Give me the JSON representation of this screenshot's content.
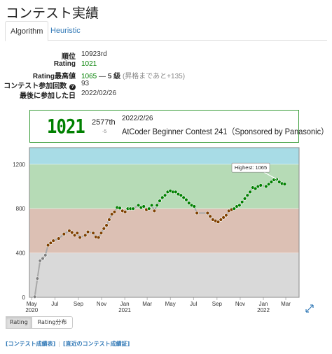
{
  "page": {
    "title": "コンテスト実績"
  },
  "tabs": [
    {
      "label": "Algorithm",
      "active": true
    },
    {
      "label": "Heuristic",
      "active": false
    }
  ],
  "stats": {
    "rank_label": "順位",
    "rank_value": "10923rd",
    "rating_label": "Rating",
    "rating_value": "1021",
    "highest_label": "Rating最高値",
    "highest_value": "1065",
    "highest_sep": "—",
    "highest_kyu": "5 級",
    "highest_note": "(昇格まであと+135)",
    "count_label": "コンテスト参加回数",
    "count_help_icon": "?",
    "count_value": "93",
    "last_label": "最後に参加した日",
    "last_value": "2022/02/26"
  },
  "status_card": {
    "rating": "1021",
    "rank": "2577th",
    "diff": "-5",
    "date": "2022/2/26",
    "contest": "AtCoder Beginner Contest 241（Sponsored by Panasonic）"
  },
  "colors": {
    "cyan_band": "#a8dce6",
    "green_band": "#b6dbb6",
    "brown_band": "#dcc0b4",
    "gray_band": "#d9d9d9",
    "green_point": "#008000",
    "brown_point": "#804000",
    "gray_point": "#808080",
    "line": "#a8a8a8",
    "accent": "#337ab7"
  },
  "chart_data": {
    "type": "line",
    "title": "",
    "xlabel": "",
    "ylabel": "",
    "x_tick_labels": [
      "May\n2020",
      "Jul",
      "Sep",
      "Nov",
      "Jan\n2021",
      "Mar",
      "May",
      "Jul",
      "Sep",
      "Nov",
      "Jan\n2022",
      "Mar"
    ],
    "y_tick_labels": [
      "0",
      "400",
      "800",
      "1200"
    ],
    "ylim": [
      0,
      1350
    ],
    "xlim": [
      "2020-04-25",
      "2022-04-05"
    ],
    "bands": [
      {
        "from": 0,
        "to": 400,
        "color": "gray"
      },
      {
        "from": 400,
        "to": 800,
        "color": "brown"
      },
      {
        "from": 800,
        "to": 1200,
        "color": "green"
      },
      {
        "from": 1200,
        "to": 1350,
        "color": "cyan"
      }
    ],
    "annotation": {
      "text": "Highest: 1065",
      "x": "2022-02-05",
      "y": 1065
    },
    "series": [
      {
        "points": [
          [
            "2020-05-09",
            5
          ],
          [
            "2020-05-16",
            170
          ],
          [
            "2020-05-23",
            330
          ],
          [
            "2020-05-30",
            350
          ],
          [
            "2020-06-06",
            380
          ],
          [
            "2020-06-13",
            470
          ],
          [
            "2020-06-20",
            490
          ],
          [
            "2020-06-27",
            510
          ],
          [
            "2020-07-11",
            530
          ],
          [
            "2020-07-25",
            570
          ],
          [
            "2020-08-08",
            600
          ],
          [
            "2020-08-15",
            585
          ],
          [
            "2020-08-22",
            560
          ],
          [
            "2020-08-29",
            580
          ],
          [
            "2020-09-05",
            540
          ],
          [
            "2020-09-19",
            560
          ],
          [
            "2020-09-26",
            590
          ],
          [
            "2020-10-10",
            580
          ],
          [
            "2020-10-17",
            545
          ],
          [
            "2020-10-24",
            540
          ],
          [
            "2020-10-31",
            580
          ],
          [
            "2020-11-07",
            620
          ],
          [
            "2020-11-14",
            650
          ],
          [
            "2020-11-21",
            700
          ],
          [
            "2020-11-28",
            750
          ],
          [
            "2020-12-05",
            770
          ],
          [
            "2020-12-12",
            810
          ],
          [
            "2020-12-19",
            805
          ],
          [
            "2020-12-26",
            780
          ],
          [
            "2021-01-02",
            770
          ],
          [
            "2021-01-09",
            800
          ],
          [
            "2021-01-16",
            800
          ],
          [
            "2021-01-23",
            800
          ],
          [
            "2021-02-06",
            830
          ],
          [
            "2021-02-13",
            810
          ],
          [
            "2021-02-20",
            820
          ],
          [
            "2021-02-27",
            790
          ],
          [
            "2021-03-06",
            800
          ],
          [
            "2021-03-13",
            830
          ],
          [
            "2021-03-20",
            780
          ],
          [
            "2021-03-27",
            830
          ],
          [
            "2021-04-03",
            870
          ],
          [
            "2021-04-10",
            900
          ],
          [
            "2021-04-17",
            920
          ],
          [
            "2021-04-24",
            950
          ],
          [
            "2021-05-01",
            960
          ],
          [
            "2021-05-08",
            950
          ],
          [
            "2021-05-15",
            950
          ],
          [
            "2021-05-22",
            930
          ],
          [
            "2021-05-29",
            920
          ],
          [
            "2021-06-05",
            900
          ],
          [
            "2021-06-12",
            880
          ],
          [
            "2021-06-19",
            850
          ],
          [
            "2021-06-26",
            830
          ],
          [
            "2021-07-03",
            820
          ],
          [
            "2021-07-10",
            760
          ],
          [
            "2021-08-07",
            760
          ],
          [
            "2021-08-14",
            730
          ],
          [
            "2021-08-21",
            700
          ],
          [
            "2021-08-28",
            690
          ],
          [
            "2021-09-04",
            680
          ],
          [
            "2021-09-11",
            700
          ],
          [
            "2021-09-18",
            720
          ],
          [
            "2021-09-25",
            740
          ],
          [
            "2021-10-02",
            780
          ],
          [
            "2021-10-09",
            790
          ],
          [
            "2021-10-16",
            800
          ],
          [
            "2021-10-23",
            820
          ],
          [
            "2021-10-30",
            830
          ],
          [
            "2021-11-06",
            860
          ],
          [
            "2021-11-13",
            890
          ],
          [
            "2021-11-20",
            920
          ],
          [
            "2021-11-27",
            950
          ],
          [
            "2021-12-04",
            990
          ],
          [
            "2021-12-11",
            980
          ],
          [
            "2021-12-18",
            1000
          ],
          [
            "2021-12-25",
            1010
          ],
          [
            "2022-01-08",
            1000
          ],
          [
            "2022-01-15",
            1020
          ],
          [
            "2022-01-22",
            1040
          ],
          [
            "2022-01-29",
            1060
          ],
          [
            "2022-02-05",
            1065
          ],
          [
            "2022-02-12",
            1040
          ],
          [
            "2022-02-19",
            1026
          ],
          [
            "2022-02-26",
            1021
          ]
        ]
      }
    ]
  },
  "chart_buttons": [
    {
      "label": "Rating",
      "active": true
    },
    {
      "label": "Rating分布",
      "active": false
    }
  ],
  "footer": {
    "link1": "[コンテスト成績表]",
    "separator": "|",
    "link2": "[直近のコンテスト成績証]"
  }
}
